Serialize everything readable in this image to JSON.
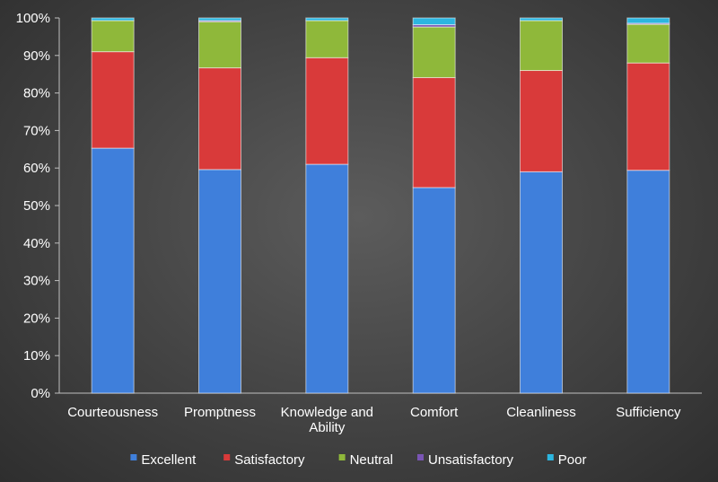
{
  "chart_data": {
    "type": "bar",
    "stacked": true,
    "percent_stacked": true,
    "categories": [
      [
        "Courteousness"
      ],
      [
        "Promptness"
      ],
      [
        "Knowledge and",
        "Ability"
      ],
      [
        "Comfort"
      ],
      [
        "Cleanliness"
      ],
      [
        "Sufficiency"
      ]
    ],
    "series": [
      {
        "name": "Excellent",
        "color": "#3f7fdb",
        "values": [
          65.3,
          59.6,
          61.0,
          54.8,
          59.0,
          59.4
        ]
      },
      {
        "name": "Satisfactory",
        "color": "#d93a3a",
        "values": [
          25.7,
          27.1,
          28.4,
          29.3,
          27.0,
          28.6
        ]
      },
      {
        "name": "Neutral",
        "color": "#8fb83a",
        "values": [
          8.3,
          12.3,
          9.9,
          13.5,
          13.3,
          10.3
        ]
      },
      {
        "name": "Unsatisfactory",
        "color": "#7a55b5",
        "values": [
          0.0,
          0.3,
          0.0,
          0.6,
          0.0,
          0.3
        ]
      },
      {
        "name": "Poor",
        "color": "#2cb6e0",
        "values": [
          0.7,
          0.7,
          0.7,
          1.8,
          0.7,
          1.4
        ]
      }
    ],
    "y_ticks": [
      "0%",
      "10%",
      "20%",
      "30%",
      "40%",
      "50%",
      "60%",
      "70%",
      "80%",
      "90%",
      "100%"
    ],
    "ylim": [
      0,
      100
    ],
    "grid": false,
    "legend_position": "bottom"
  }
}
